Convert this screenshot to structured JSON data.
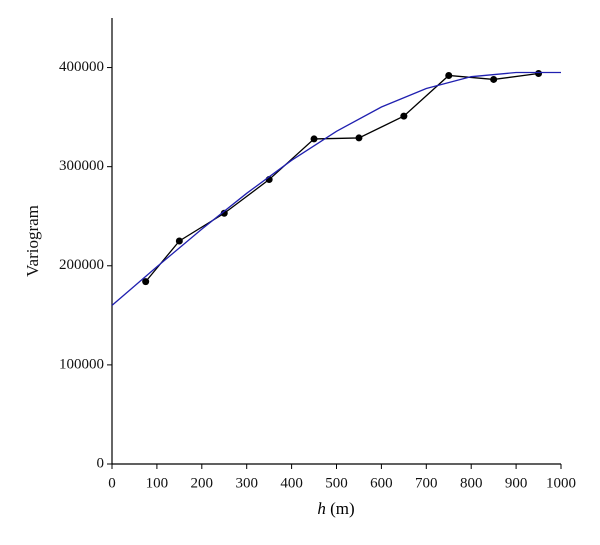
{
  "chart_data": {
    "type": "line",
    "xlabel": "h (m)",
    "ylabel": "Variogram",
    "xlim": [
      0,
      1000
    ],
    "xticks": [
      0,
      100,
      200,
      300,
      400,
      500,
      600,
      700,
      800,
      900,
      1000
    ],
    "ylim": [
      0,
      450000
    ],
    "yticks": [
      0,
      100000,
      200000,
      300000,
      400000
    ],
    "grid": false,
    "series": [
      {
        "color": "#000000",
        "markers": true,
        "x": [
          75,
          150,
          250,
          350,
          450,
          550,
          650,
          750,
          850,
          950
        ],
        "values": [
          184000,
          225000,
          253000,
          287000,
          328000,
          329000,
          351000,
          392000,
          388000,
          394000
        ]
      },
      {
        "color": "#2020b0",
        "markers": false,
        "x": [
          0,
          100,
          200,
          300,
          400,
          500,
          600,
          700,
          800,
          900,
          1000
        ],
        "values": [
          160000,
          199000,
          237000,
          273100,
          306400,
          335700,
          360200,
          378900,
          390800,
          395000,
          395000
        ]
      }
    ]
  }
}
